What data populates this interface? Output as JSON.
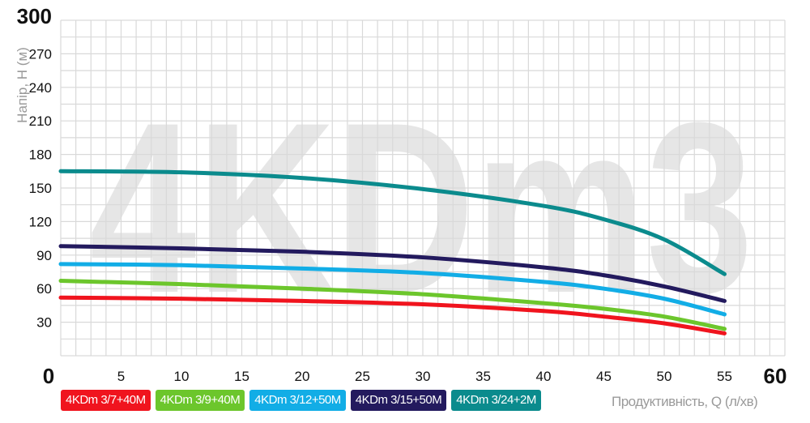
{
  "chart_data": {
    "type": "line",
    "watermark": "4KDm3",
    "xlabel": "Продуктивність, Q (л/хв)",
    "ylabel": "Напір, H (м)",
    "xlim": [
      0,
      60
    ],
    "ylim": [
      0,
      300
    ],
    "xticks": [
      0,
      5,
      10,
      15,
      20,
      25,
      30,
      35,
      40,
      45,
      50,
      55,
      60
    ],
    "yticks": [
      0,
      30,
      60,
      90,
      120,
      150,
      180,
      210,
      240,
      270,
      300
    ],
    "grid": true,
    "legend_position": "bottom",
    "x": [
      0,
      10,
      20,
      30,
      40,
      45,
      50,
      55
    ],
    "series": [
      {
        "name": "4KDm 3/7+40M",
        "color": "#f0141e",
        "values": [
          52,
          51,
          49,
          46,
          40,
          35,
          29,
          20
        ]
      },
      {
        "name": "4KDm 3/9+40M",
        "color": "#6cc62c",
        "values": [
          67,
          64,
          60,
          55,
          47,
          42,
          35,
          24
        ]
      },
      {
        "name": "4KDm 3/12+50M",
        "color": "#12ade6",
        "values": [
          82,
          81,
          78,
          74,
          66,
          60,
          51,
          37
        ]
      },
      {
        "name": "4KDm 3/15+50M",
        "color": "#231a5e",
        "values": [
          98,
          96,
          93,
          88,
          79,
          72,
          62,
          49
        ]
      },
      {
        "name": "4KDm 3/24+2M",
        "color": "#0b8b8d",
        "values": [
          165,
          164,
          159,
          149,
          134,
          122,
          104,
          73
        ]
      }
    ]
  }
}
